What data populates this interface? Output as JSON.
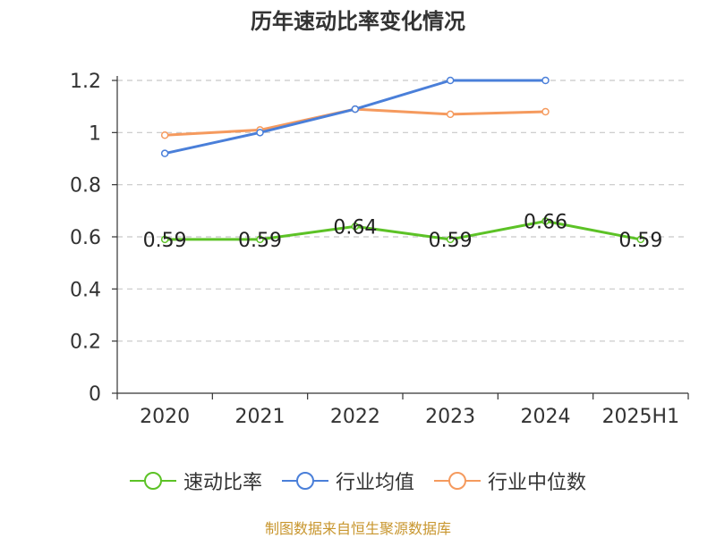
{
  "chart_data": {
    "type": "line",
    "title": "历年速动比率变化情况",
    "categories": [
      "2020",
      "2021",
      "2022",
      "2023",
      "2024",
      "2025H1"
    ],
    "ylim": [
      0,
      1.2
    ],
    "yticks": [
      "0",
      "0.2",
      "0.4",
      "0.6",
      "0.8",
      "1",
      "1.2"
    ],
    "grid": true,
    "legend_position": "bottom",
    "series": [
      {
        "name": "速动比率",
        "color": "#5cc226",
        "values": [
          0.59,
          0.59,
          0.64,
          0.59,
          0.66,
          0.59
        ],
        "labels": [
          "0.59",
          "0.59",
          "0.64",
          "0.59",
          "0.66",
          "0.59"
        ]
      },
      {
        "name": "行业均值",
        "color": "#4a7fd9",
        "values": [
          0.92,
          1.0,
          1.09,
          1.2,
          1.2,
          null
        ]
      },
      {
        "name": "行业中位数",
        "color": "#f59a5e",
        "values": [
          0.99,
          1.01,
          1.09,
          1.07,
          1.08,
          null
        ]
      }
    ]
  },
  "source": "制图数据来自恒生聚源数据库"
}
